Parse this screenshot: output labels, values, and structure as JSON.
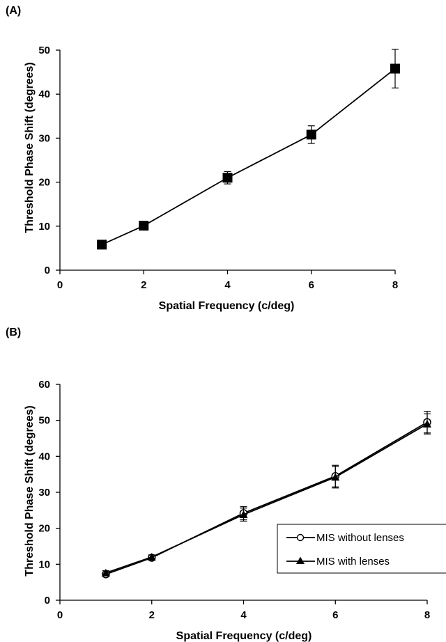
{
  "chart_data": [
    {
      "panel": "(A)",
      "type": "line",
      "xlabel": "Spatial  Frequency  (c/deg)",
      "ylabel": "Threshold Phase Shift (degrees)",
      "xlim": [
        0,
        8
      ],
      "ylim": [
        0,
        50
      ],
      "xticks": [
        0,
        2,
        4,
        6,
        8
      ],
      "yticks": [
        0,
        10,
        20,
        30,
        40,
        50
      ],
      "grid": false,
      "legend": null,
      "series": [
        {
          "marker": "filled-square",
          "color": "#000000",
          "x": [
            1,
            2,
            4,
            6,
            8
          ],
          "y": [
            5.8,
            10.1,
            21.0,
            30.8,
            45.8
          ],
          "err": [
            0.5,
            0.6,
            1.4,
            2.0,
            4.4
          ]
        }
      ]
    },
    {
      "panel": "(B)",
      "type": "line",
      "xlabel": "Spatial  Frequency  (c/deg)",
      "ylabel": "Threshold Phase Shift (degrees)",
      "xlim": [
        0,
        8
      ],
      "ylim": [
        0,
        60
      ],
      "xticks": [
        0,
        2,
        4,
        6,
        8
      ],
      "yticks": [
        0,
        10,
        20,
        30,
        40,
        50,
        60
      ],
      "grid": false,
      "legend": "bottom-right",
      "series": [
        {
          "name": "MIS without lenses",
          "marker": "open-circle",
          "color": "#000000",
          "x": [
            1,
            2,
            4,
            6,
            8
          ],
          "y": [
            7.2,
            11.8,
            24.2,
            34.5,
            49.5
          ],
          "err": [
            0.6,
            0.6,
            1.8,
            3.0,
            3.0
          ]
        },
        {
          "name": "MIS with lenses",
          "marker": "filled-triangle",
          "color": "#000000",
          "x": [
            1,
            2,
            4,
            6,
            8
          ],
          "y": [
            7.6,
            12.0,
            23.8,
            34.2,
            49.0
          ],
          "err": [
            0.6,
            0.6,
            1.8,
            3.0,
            2.8
          ]
        }
      ]
    }
  ]
}
